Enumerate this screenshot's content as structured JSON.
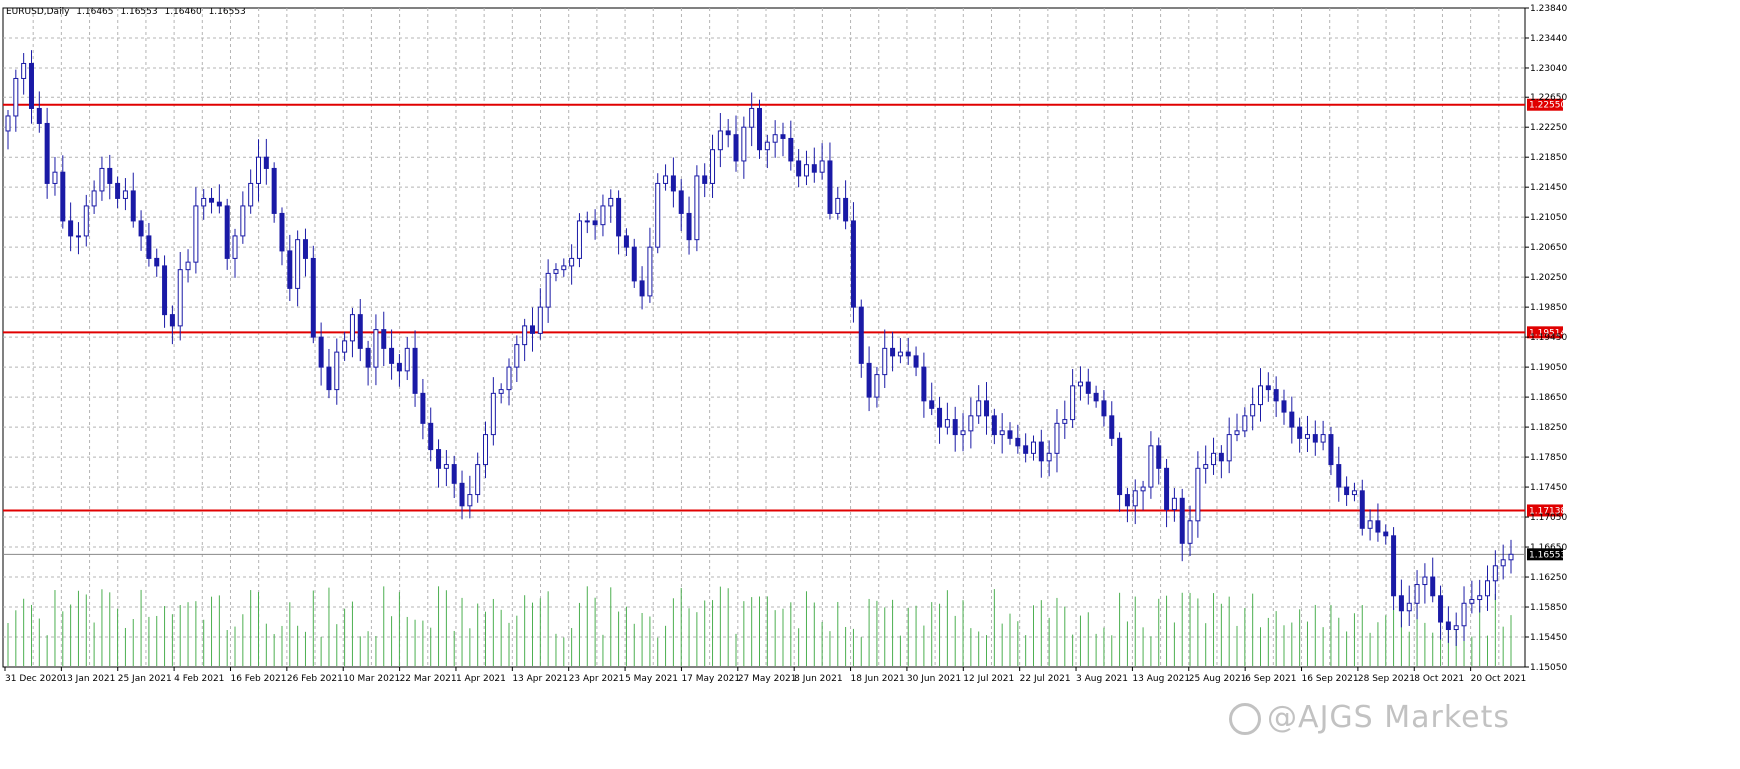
{
  "info": {
    "symbol": "EURUSD,Daily",
    "open": "1.16465",
    "high": "1.16553",
    "low": "1.16460",
    "close": "1.16553"
  },
  "watermark": "@AJGS Markets",
  "colors": {
    "candle": "#1a1aa6",
    "volume": "#4caf50",
    "level": "#e00000",
    "grid": "#b4b4b4",
    "current": "#000000"
  },
  "chart_data": {
    "type": "candlestick",
    "symbol": "EURUSD",
    "timeframe": "Daily",
    "ylim": [
      1.1505,
      1.2384
    ],
    "y_ticks": [
      "1.23840",
      "1.23440",
      "1.23040",
      "1.22650",
      "1.22250",
      "1.21850",
      "1.21450",
      "1.21050",
      "1.20650",
      "1.20250",
      "1.19850",
      "1.19450",
      "1.19050",
      "1.18650",
      "1.18250",
      "1.17850",
      "1.17450",
      "1.17050",
      "1.16650",
      "1.16250",
      "1.15850",
      "1.15450",
      "1.15050"
    ],
    "x_ticks": [
      "31 Dec 2020",
      "13 Jan 2021",
      "25 Jan 2021",
      "4 Feb 2021",
      "16 Feb 2021",
      "26 Feb 2021",
      "10 Mar 2021",
      "22 Mar 2021",
      "1 Apr 2021",
      "13 Apr 2021",
      "23 Apr 2021",
      "5 May 2021",
      "17 May 2021",
      "27 May 2021",
      "8 Jun 2021",
      "18 Jun 2021",
      "30 Jun 2021",
      "12 Jul 2021",
      "22 Jul 2021",
      "3 Aug 2021",
      "13 Aug 2021",
      "25 Aug 2021",
      "6 Sep 2021",
      "16 Sep 2021",
      "28 Sep 2021",
      "8 Oct 2021",
      "20 Oct 2021"
    ],
    "levels": [
      {
        "label": "1.22550",
        "value": 1.2255
      },
      {
        "label": "1.19514",
        "value": 1.19514
      },
      {
        "label": "1.17138",
        "value": 1.17138
      }
    ],
    "current_price": {
      "label": "1.16553",
      "value": 1.16553
    },
    "closes": [
      1.224,
      1.229,
      1.231,
      1.225,
      1.223,
      1.215,
      1.2165,
      1.21,
      1.208,
      1.208,
      1.212,
      1.214,
      1.217,
      1.215,
      1.213,
      1.214,
      1.21,
      1.208,
      1.205,
      1.204,
      1.1975,
      1.196,
      1.2035,
      1.2045,
      1.212,
      1.213,
      1.2125,
      1.212,
      1.205,
      1.208,
      1.212,
      1.215,
      1.2185,
      1.217,
      1.211,
      1.206,
      1.201,
      1.2075,
      1.205,
      1.1945,
      1.1905,
      1.1875,
      1.1925,
      1.194,
      1.1975,
      1.193,
      1.1905,
      1.1955,
      1.193,
      1.191,
      1.19,
      1.193,
      1.187,
      1.183,
      1.1795,
      1.177,
      1.1775,
      1.175,
      1.172,
      1.1735,
      1.1775,
      1.1815,
      1.187,
      1.1875,
      1.1905,
      1.1935,
      1.196,
      1.195,
      1.1985,
      1.203,
      1.2035,
      1.204,
      1.205,
      1.21,
      1.21,
      1.2095,
      1.212,
      1.213,
      1.208,
      1.2065,
      1.202,
      1.2,
      1.2065,
      1.215,
      1.216,
      1.214,
      1.211,
      1.2075,
      1.216,
      1.215,
      1.2195,
      1.222,
      1.2215,
      1.218,
      1.2225,
      1.225,
      1.2195,
      1.2205,
      1.2215,
      1.221,
      1.218,
      1.216,
      1.2175,
      1.2165,
      1.218,
      1.211,
      1.213,
      1.21,
      1.1985,
      1.191,
      1.1865,
      1.1895,
      1.193,
      1.192,
      1.1925,
      1.192,
      1.1905,
      1.186,
      1.185,
      1.1825,
      1.1835,
      1.1815,
      1.182,
      1.184,
      1.186,
      1.184,
      1.1815,
      1.182,
      1.181,
      1.18,
      1.179,
      1.1805,
      1.178,
      1.179,
      1.183,
      1.1835,
      1.188,
      1.1885,
      1.187,
      1.186,
      1.184,
      1.181,
      1.1735,
      1.172,
      1.174,
      1.1745,
      1.18,
      1.177,
      1.1715,
      1.173,
      1.167,
      1.17,
      1.177,
      1.1775,
      1.179,
      1.178,
      1.1815,
      1.182,
      1.184,
      1.1855,
      1.188,
      1.1875,
      1.186,
      1.1845,
      1.1825,
      1.181,
      1.1815,
      1.1805,
      1.1815,
      1.1775,
      1.1745,
      1.1735,
      1.174,
      1.169,
      1.17,
      1.1685,
      1.168,
      1.16,
      1.158,
      1.159,
      1.1615,
      1.1625,
      1.16,
      1.1565,
      1.1555,
      1.156,
      1.159,
      1.1595,
      1.16,
      1.162,
      1.164,
      1.1648,
      1.16553
    ]
  }
}
